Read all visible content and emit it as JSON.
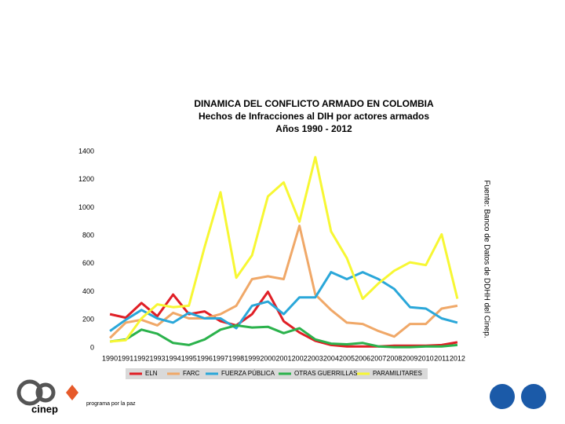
{
  "chart_data": {
    "type": "line",
    "title": "DINAMICA DEL CONFLICTO ARMADO EN COLOMBIA",
    "subtitles": [
      "Hechos de Infracciones al DIH por actores armados",
      "Años 1990 - 2012"
    ],
    "source": "Fuente: Banco de Datos de DDHH del Cinep.",
    "categories": [
      "1990",
      "1991",
      "1992",
      "1993",
      "1994",
      "1995",
      "1996",
      "1997",
      "1998",
      "1999",
      "2000",
      "2001",
      "2002",
      "2003",
      "2004",
      "2005",
      "2006",
      "2007",
      "2008",
      "2009",
      "2010",
      "2011",
      "2012"
    ],
    "series": [
      {
        "name": "ELN",
        "color": "#e01f26",
        "values": [
          240,
          215,
          320,
          225,
          380,
          240,
          260,
          190,
          160,
          240,
          400,
          190,
          110,
          50,
          20,
          10,
          10,
          10,
          15,
          15,
          15,
          20,
          40
        ]
      },
      {
        "name": "FARC",
        "color": "#f0a868",
        "values": [
          70,
          180,
          200,
          160,
          250,
          210,
          210,
          240,
          300,
          490,
          510,
          490,
          870,
          380,
          270,
          180,
          170,
          120,
          80,
          170,
          170,
          280,
          300
        ]
      },
      {
        "name": "FUERZA PÚBLICA",
        "color": "#2aa7d9",
        "values": [
          120,
          200,
          270,
          210,
          180,
          250,
          210,
          210,
          140,
          300,
          330,
          240,
          360,
          360,
          540,
          490,
          540,
          490,
          420,
          290,
          280,
          210,
          180
        ]
      },
      {
        "name": "OTRAS GUERRILLAS",
        "color": "#2bb24c",
        "values": [
          45,
          60,
          130,
          100,
          35,
          20,
          60,
          130,
          160,
          145,
          150,
          105,
          140,
          60,
          30,
          25,
          35,
          10,
          5,
          5,
          10,
          10,
          20
        ]
      },
      {
        "name": "PARAMILITARES",
        "color": "#f7f733",
        "values": [
          45,
          55,
          210,
          310,
          290,
          300,
          720,
          1110,
          500,
          660,
          1080,
          1180,
          900,
          1360,
          830,
          640,
          350,
          460,
          550,
          610,
          590,
          810,
          350
        ]
      }
    ],
    "ylim": [
      0,
      1400
    ],
    "yticks": [
      0,
      200,
      400,
      600,
      800,
      1000,
      1200,
      1400
    ],
    "grid": false,
    "legend": "bottom"
  },
  "logos": [
    "cinep",
    "programa por la paz"
  ]
}
